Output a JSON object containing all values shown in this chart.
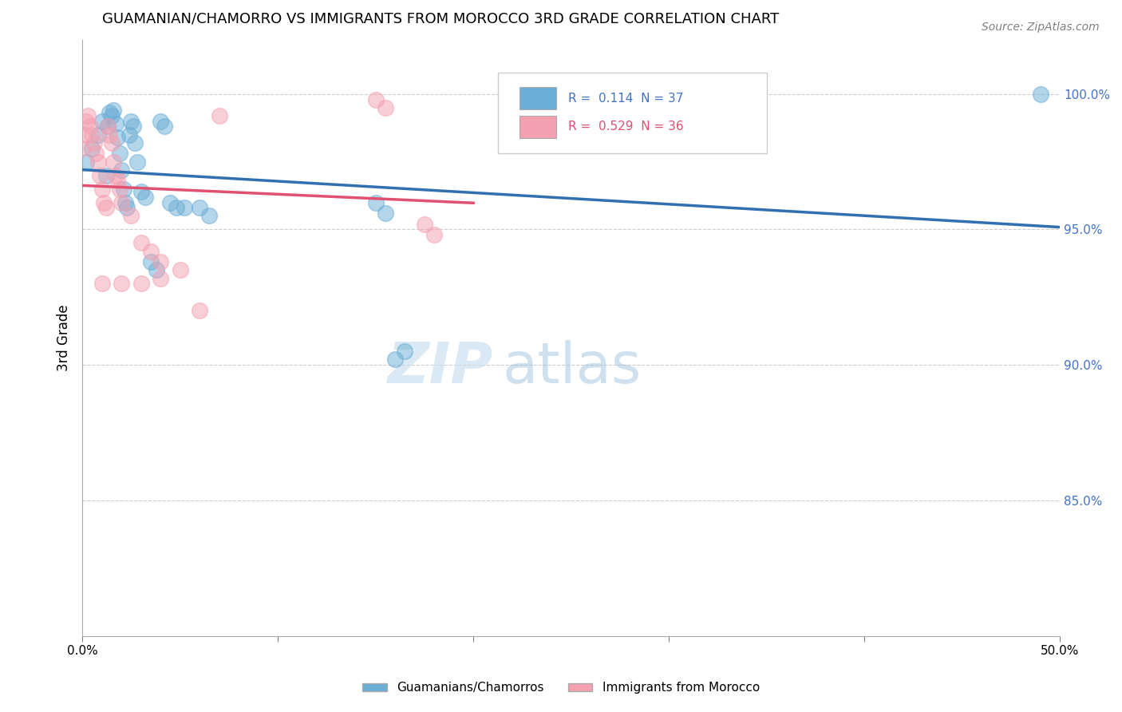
{
  "title": "GUAMANIAN/CHAMORRO VS IMMIGRANTS FROM MOROCCO 3RD GRADE CORRELATION CHART",
  "source": "Source: ZipAtlas.com",
  "ylabel": "3rd Grade",
  "ylabel_right_labels": [
    "100.0%",
    "95.0%",
    "90.0%",
    "85.0%"
  ],
  "ylabel_right_values": [
    1.0,
    0.95,
    0.9,
    0.85
  ],
  "xlim": [
    0.0,
    0.5
  ],
  "ylim": [
    0.8,
    1.02
  ],
  "legend_blue_R": "0.114",
  "legend_blue_N": "37",
  "legend_pink_R": "0.529",
  "legend_pink_N": "36",
  "legend_blue_label": "Guamanians/Chamorros",
  "legend_pink_label": "Immigrants from Morocco",
  "blue_color": "#6baed6",
  "pink_color": "#f4a0b0",
  "trend_blue_color": "#3070b0",
  "trend_pink_color": "#e05070",
  "watermark_zip": "ZIP",
  "watermark_atlas": "atlas",
  "blue_scatter_x": [
    0.002,
    0.005,
    0.008,
    0.01,
    0.012,
    0.013,
    0.014,
    0.015,
    0.016,
    0.017,
    0.018,
    0.019,
    0.02,
    0.021,
    0.022,
    0.023,
    0.024,
    0.025,
    0.026,
    0.027,
    0.028,
    0.03,
    0.032,
    0.035,
    0.038,
    0.04,
    0.042,
    0.045,
    0.048,
    0.052,
    0.06,
    0.065,
    0.15,
    0.155,
    0.16,
    0.165,
    0.49
  ],
  "blue_scatter_y": [
    0.975,
    0.98,
    0.985,
    0.99,
    0.97,
    0.988,
    0.993,
    0.992,
    0.994,
    0.989,
    0.984,
    0.978,
    0.972,
    0.965,
    0.96,
    0.958,
    0.985,
    0.99,
    0.988,
    0.982,
    0.975,
    0.964,
    0.962,
    0.938,
    0.935,
    0.99,
    0.988,
    0.96,
    0.958,
    0.958,
    0.958,
    0.955,
    0.96,
    0.956,
    0.902,
    0.905,
    1.0
  ],
  "pink_scatter_x": [
    0.0,
    0.001,
    0.002,
    0.003,
    0.004,
    0.005,
    0.006,
    0.007,
    0.008,
    0.009,
    0.01,
    0.011,
    0.012,
    0.013,
    0.014,
    0.015,
    0.016,
    0.017,
    0.018,
    0.019,
    0.02,
    0.025,
    0.03,
    0.035,
    0.04,
    0.05,
    0.06,
    0.07,
    0.15,
    0.155,
    0.175,
    0.18,
    0.01,
    0.02,
    0.03,
    0.04
  ],
  "pink_scatter_y": [
    0.98,
    0.985,
    0.99,
    0.992,
    0.988,
    0.985,
    0.982,
    0.978,
    0.975,
    0.97,
    0.965,
    0.96,
    0.958,
    0.988,
    0.985,
    0.982,
    0.975,
    0.97,
    0.968,
    0.965,
    0.96,
    0.955,
    0.945,
    0.942,
    0.938,
    0.935,
    0.92,
    0.992,
    0.998,
    0.995,
    0.952,
    0.948,
    0.93,
    0.93,
    0.93,
    0.932
  ]
}
